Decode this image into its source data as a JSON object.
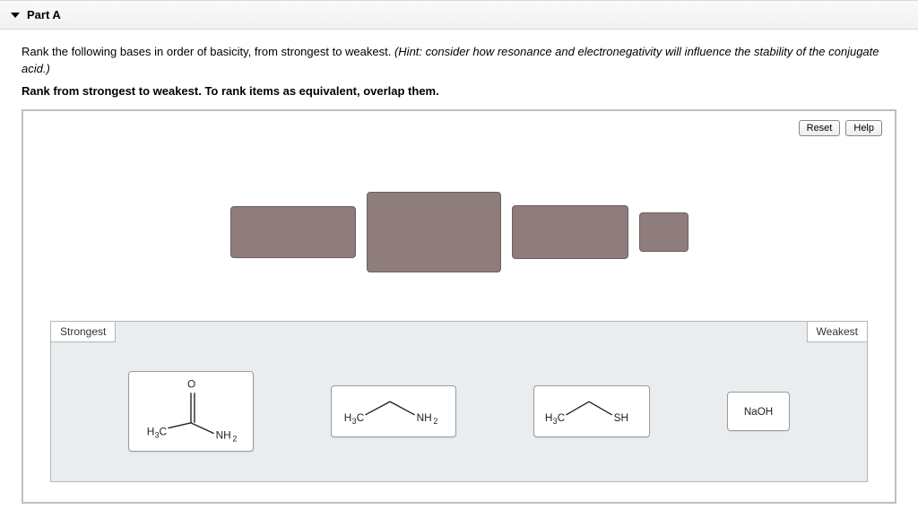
{
  "part": {
    "title": "Part A"
  },
  "prompt": {
    "question": "Rank the following bases in order of basicity, from strongest to weakest. ",
    "hint": "(Hint: consider how resonance and electronegativity will influence the stability of the conjugate acid.)",
    "instruction": "Rank from strongest to weakest. To rank items as equivalent, overlap them."
  },
  "toolbar": {
    "reset_label": "Reset",
    "help_label": "Help"
  },
  "slots": {
    "fill": "#8f7c7c",
    "items": [
      {
        "w": 140,
        "h": 58
      },
      {
        "w": 150,
        "h": 90
      },
      {
        "w": 130,
        "h": 60
      },
      {
        "w": 55,
        "h": 44
      }
    ]
  },
  "ranking": {
    "left_label": "Strongest",
    "right_label": "Weakest",
    "bg": "#e9edef",
    "cards": [
      {
        "id": "acetamide",
        "w": 140,
        "h": 90,
        "type": "acetamide"
      },
      {
        "id": "ethylamine",
        "w": 140,
        "h": 58,
        "type": "ethylamine"
      },
      {
        "id": "ethanethiol",
        "w": 130,
        "h": 58,
        "type": "ethanethiol"
      },
      {
        "id": "naoh",
        "w": 70,
        "h": 44,
        "type": "text",
        "label": "NaOH"
      }
    ]
  },
  "formulas": {
    "h3c": {
      "base": "H",
      "sub": "3",
      "tail": "C"
    },
    "nh2": {
      "base": "NH",
      "sub": "2"
    },
    "sh": {
      "base": "SH"
    },
    "o": {
      "base": "O"
    }
  }
}
